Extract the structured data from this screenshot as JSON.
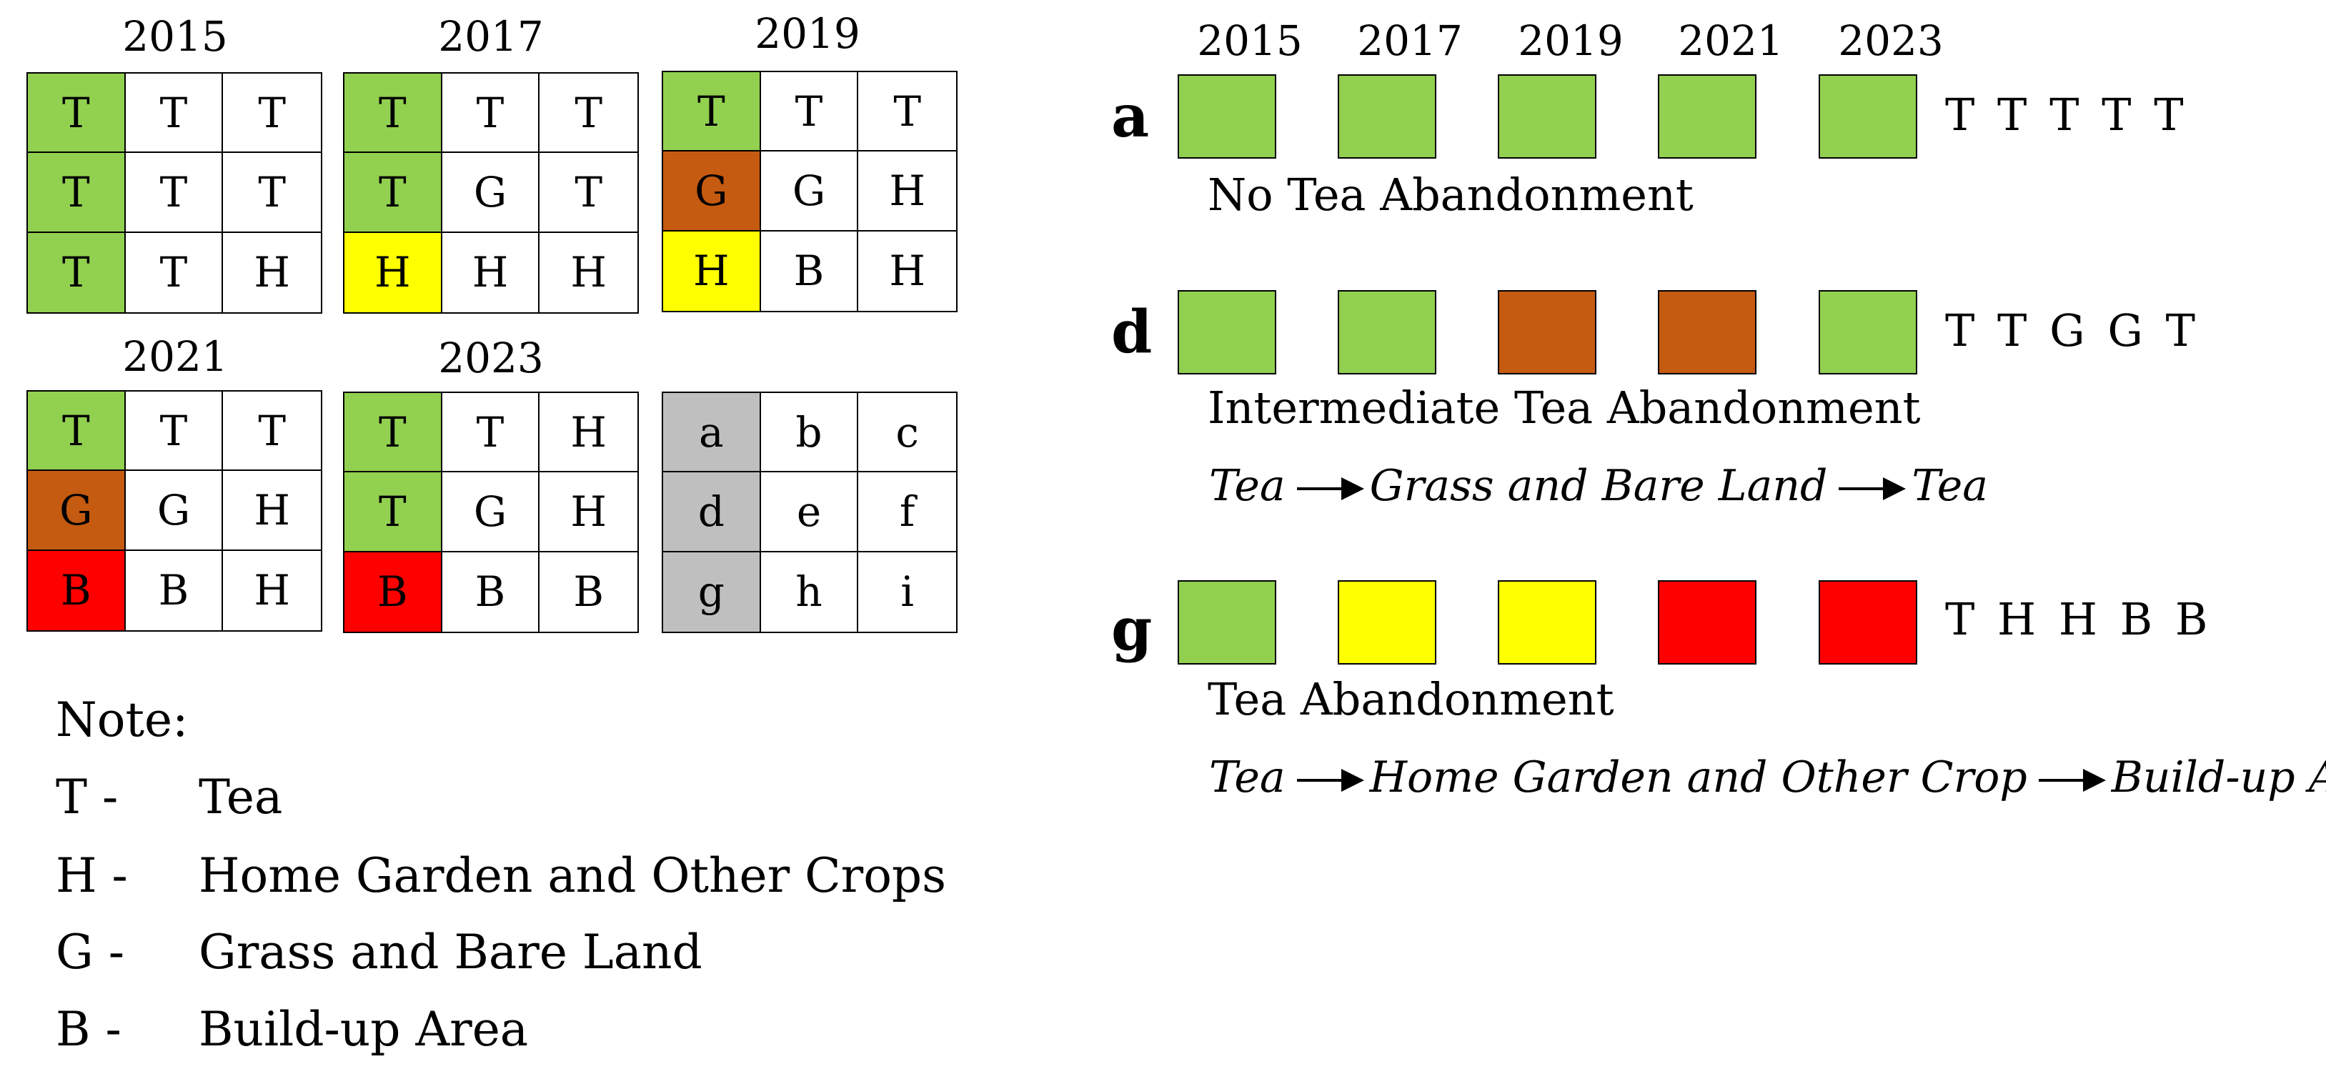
{
  "colors": {
    "T": "#92d050",
    "G": "#c55a11",
    "H": "#ffff00",
    "B": "#ff0000",
    "label": "#bfbfbf",
    "empty": "#ffffff"
  },
  "grids": [
    {
      "year": "2015",
      "cells": [
        "T",
        "T",
        "T",
        "T",
        "T",
        "T",
        "T",
        "T",
        "H"
      ],
      "fills": [
        "T",
        "",
        "",
        "T",
        "",
        "",
        "T",
        "",
        ""
      ]
    },
    {
      "year": "2017",
      "cells": [
        "T",
        "T",
        "T",
        "T",
        "G",
        "T",
        "H",
        "H",
        "H"
      ],
      "fills": [
        "T",
        "",
        "",
        "T",
        "",
        "",
        "H",
        "",
        ""
      ]
    },
    {
      "year": "2019",
      "cells": [
        "T",
        "T",
        "T",
        "G",
        "G",
        "H",
        "H",
        "B",
        "H"
      ],
      "fills": [
        "T",
        "",
        "",
        "G",
        "",
        "",
        "H",
        "",
        ""
      ]
    },
    {
      "year": "2021",
      "cells": [
        "T",
        "T",
        "T",
        "G",
        "G",
        "H",
        "B",
        "B",
        "H"
      ],
      "fills": [
        "T",
        "",
        "",
        "G",
        "",
        "",
        "B",
        "",
        ""
      ]
    },
    {
      "year": "2023",
      "cells": [
        "T",
        "T",
        "H",
        "T",
        "G",
        "H",
        "B",
        "B",
        "B"
      ],
      "fills": [
        "T",
        "",
        "",
        "T",
        "",
        "",
        "B",
        "",
        ""
      ]
    },
    {
      "year": "",
      "cells": [
        "a",
        "b",
        "c",
        "d",
        "e",
        "f",
        "g",
        "h",
        "i"
      ],
      "fills": [
        "label",
        "",
        "",
        "label",
        "",
        "",
        "label",
        "",
        ""
      ]
    }
  ],
  "note": {
    "title": "Note:",
    "items": [
      {
        "code": "T -",
        "label": "Tea"
      },
      {
        "code": "H -",
        "label": "Home Garden and Other Crops"
      },
      {
        "code": "G -",
        "label": "Grass and Bare Land"
      },
      {
        "code": "B -",
        "label": "Build-up Area"
      }
    ]
  },
  "timeline_years": [
    "2015",
    "2017",
    "2019",
    "2021",
    "2023"
  ],
  "paths": [
    {
      "letter": "a",
      "sequence": "T T T T T",
      "fills": [
        "T",
        "T",
        "T",
        "T",
        "T"
      ],
      "title": "No Tea Abandonment",
      "flow": []
    },
    {
      "letter": "d",
      "sequence": "T T G G T",
      "fills": [
        "T",
        "T",
        "G",
        "G",
        "T"
      ],
      "title": "Intermediate Tea Abandonment",
      "flow": [
        "Tea",
        "Grass and Bare Land",
        "Tea"
      ]
    },
    {
      "letter": "g",
      "sequence": "T H H B B",
      "fills": [
        "T",
        "H",
        "H",
        "B",
        "B"
      ],
      "title": "Tea Abandonment",
      "flow": [
        "Tea",
        "Home Garden and Other Crop",
        "Build-up Area"
      ]
    }
  ]
}
